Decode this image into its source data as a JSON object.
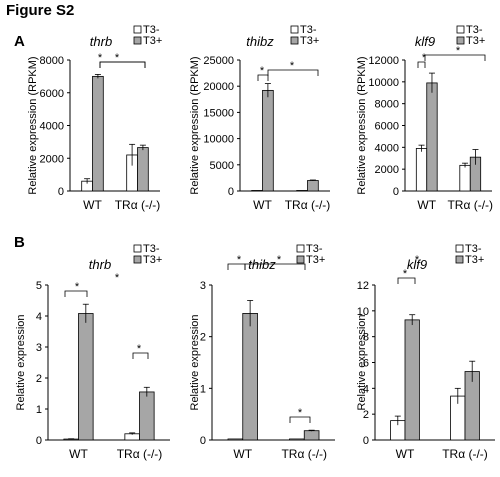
{
  "figure_title": "Figure S2",
  "panels": [
    "A",
    "B"
  ],
  "colors": {
    "T3-": "#ffffff",
    "T3+": "#a6a6a6",
    "outline": "#000000"
  },
  "chart_data": [
    {
      "type": "bar",
      "panel": "A",
      "title": "thrb",
      "categories": [
        "WT",
        "TRα (-/-)"
      ],
      "series": [
        {
          "name": "T3-",
          "values": [
            600,
            2200
          ],
          "errors": [
            150,
            650
          ]
        },
        {
          "name": "T3+",
          "values": [
            7000,
            2650
          ],
          "errors": [
            120,
            150
          ]
        }
      ],
      "ylabel": "Relative expression (RPKM)",
      "ylim": [
        0,
        8000
      ],
      "yticks": [
        "0",
        "2000",
        "4000",
        "6000",
        "8000"
      ],
      "legend": "top-right",
      "significance": [
        "*",
        "*"
      ]
    },
    {
      "type": "bar",
      "panel": "A",
      "title": "thibz",
      "categories": [
        "WT",
        "TRα (-/-)"
      ],
      "series": [
        {
          "name": "T3-",
          "values": [
            100,
            100
          ],
          "errors": [
            0,
            0
          ]
        },
        {
          "name": "T3+",
          "values": [
            19200,
            2000
          ],
          "errors": [
            1300,
            100
          ]
        }
      ],
      "ylabel": "Relative expression (RPKM)",
      "ylim": [
        0,
        25000
      ],
      "yticks": [
        "0",
        "5000",
        "10000",
        "15000",
        "20000",
        "25000"
      ],
      "legend": "top-right",
      "significance": [
        "*",
        "*"
      ]
    },
    {
      "type": "bar",
      "panel": "A",
      "title": "klf9",
      "categories": [
        "WT",
        "TRα (-/-)"
      ],
      "series": [
        {
          "name": "T3-",
          "values": [
            3900,
            2350
          ],
          "errors": [
            300,
            200
          ]
        },
        {
          "name": "T3+",
          "values": [
            9900,
            3100
          ],
          "errors": [
            900,
            700
          ]
        }
      ],
      "ylabel": "Relative expression (RPKM)",
      "ylim": [
        0,
        12000
      ],
      "yticks": [
        "0",
        "2000",
        "4000",
        "6000",
        "8000",
        "10000",
        "12000"
      ],
      "legend": "top-right",
      "significance": [
        "*",
        "*"
      ]
    },
    {
      "type": "bar",
      "panel": "B",
      "title": "thrb",
      "categories": [
        "WT",
        "TRα (-/-)"
      ],
      "series": [
        {
          "name": "T3-",
          "values": [
            0.03,
            0.2
          ],
          "errors": [
            0.01,
            0.03
          ]
        },
        {
          "name": "T3+",
          "values": [
            4.08,
            1.55
          ],
          "errors": [
            0.3,
            0.15
          ]
        }
      ],
      "ylabel": "Relative expression",
      "ylim": [
        0,
        5
      ],
      "yticks": [
        "0",
        "1",
        "2",
        "3",
        "4",
        "5"
      ],
      "legend": "top-right",
      "significance": [
        "*",
        "*",
        "*"
      ]
    },
    {
      "type": "bar",
      "panel": "B",
      "title": "thibz",
      "categories": [
        "WT",
        "TRα (-/-)"
      ],
      "series": [
        {
          "name": "T3-",
          "values": [
            0.02,
            0.02
          ],
          "errors": [
            0,
            0
          ]
        },
        {
          "name": "T3+",
          "values": [
            2.45,
            0.18
          ],
          "errors": [
            0.25,
            0.01
          ]
        }
      ],
      "ylabel": "Relative expression",
      "ylim": [
        0,
        3
      ],
      "yticks": [
        "0",
        "1",
        "2",
        "3"
      ],
      "legend": "top-right",
      "significance": [
        "*",
        "*",
        "*"
      ]
    },
    {
      "type": "bar",
      "panel": "B",
      "title": "klf9",
      "categories": [
        "WT",
        "TRα (-/-)"
      ],
      "series": [
        {
          "name": "T3-",
          "values": [
            1.5,
            3.4
          ],
          "errors": [
            0.35,
            0.6
          ]
        },
        {
          "name": "T3+",
          "values": [
            9.3,
            5.3
          ],
          "errors": [
            0.4,
            0.8
          ]
        }
      ],
      "ylabel": "Relative expression",
      "ylim": [
        0,
        12
      ],
      "yticks": [
        "0",
        "2",
        "4",
        "6",
        "8",
        "10",
        "12"
      ],
      "legend": "top-right",
      "significance": [
        "*",
        "*"
      ]
    }
  ]
}
